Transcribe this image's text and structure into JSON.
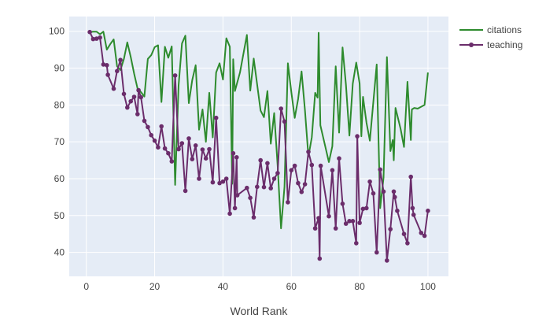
{
  "chart_data": {
    "type": "line",
    "xlabel": "World Rank",
    "ylabel": "",
    "xlim": [
      -5,
      106
    ],
    "ylim": [
      33.5,
      104
    ],
    "x_ticks": [
      0,
      20,
      40,
      60,
      80,
      100
    ],
    "y_ticks": [
      40,
      50,
      60,
      70,
      80,
      90,
      100
    ],
    "grid": true,
    "legend_position": "top-right",
    "series": [
      {
        "name": "citations",
        "color": "#2e8b2e",
        "markers": false,
        "points": [
          [
            1,
            99.8
          ],
          [
            2,
            99.9
          ],
          [
            3,
            99.9
          ],
          [
            4,
            99.2
          ],
          [
            5,
            99.9
          ],
          [
            6,
            95.0
          ],
          [
            7,
            96.5
          ],
          [
            8,
            97.8
          ],
          [
            9,
            90.5
          ],
          [
            10,
            89.5
          ],
          [
            11,
            92.5
          ],
          [
            12,
            97.0
          ],
          [
            13,
            93.0
          ],
          [
            14,
            88.5
          ],
          [
            15,
            84.5
          ],
          [
            16,
            83.5
          ],
          [
            17,
            82.3
          ],
          [
            18,
            92.5
          ],
          [
            19,
            93.5
          ],
          [
            20,
            95.7
          ],
          [
            21,
            96.2
          ],
          [
            22,
            80.8
          ],
          [
            23,
            95.8
          ],
          [
            24,
            92.8
          ],
          [
            25,
            95.9
          ],
          [
            26,
            58.3
          ],
          [
            27,
            85.3
          ],
          [
            28,
            96.7
          ],
          [
            29,
            98.8
          ],
          [
            30,
            80.5
          ],
          [
            31,
            86.7
          ],
          [
            32,
            90.8
          ],
          [
            33,
            73.3
          ],
          [
            34,
            78.8
          ],
          [
            35,
            70.0
          ],
          [
            36,
            83.3
          ],
          [
            37,
            71.2
          ],
          [
            38,
            88.8
          ],
          [
            39,
            91.3
          ],
          [
            40,
            86.9
          ],
          [
            41,
            98.1
          ],
          [
            42,
            95.8
          ],
          [
            42.7,
            58.6
          ],
          [
            43,
            92.4
          ],
          [
            43.5,
            83.8
          ],
          [
            45,
            88.9
          ],
          [
            47,
            99.0
          ],
          [
            48,
            83.9
          ],
          [
            49,
            92.6
          ],
          [
            51,
            78.5
          ],
          [
            52,
            76.7
          ],
          [
            53,
            83.8
          ],
          [
            54,
            69.5
          ],
          [
            55,
            77.8
          ],
          [
            56,
            63.5
          ],
          [
            57,
            46.5
          ],
          [
            58,
            57.8
          ],
          [
            59,
            91.3
          ],
          [
            60,
            83.5
          ],
          [
            61,
            76.5
          ],
          [
            62,
            81.6
          ],
          [
            63,
            89.1
          ],
          [
            64,
            78.6
          ],
          [
            65,
            66.0
          ],
          [
            66,
            71.2
          ],
          [
            67,
            83.3
          ],
          [
            67.7,
            82.0
          ],
          [
            68,
            99.6
          ],
          [
            68.5,
            74.5
          ],
          [
            70,
            68.5
          ],
          [
            71,
            64.5
          ],
          [
            72,
            68.8
          ],
          [
            73,
            90.5
          ],
          [
            74,
            72.5
          ],
          [
            75,
            95.6
          ],
          [
            76,
            85.5
          ],
          [
            77,
            71.7
          ],
          [
            78,
            85.8
          ],
          [
            79,
            91.5
          ],
          [
            80,
            85.8
          ],
          [
            80.5,
            71.5
          ],
          [
            81,
            82.2
          ],
          [
            82,
            75.2
          ],
          [
            83,
            70.3
          ],
          [
            85,
            91.0
          ],
          [
            86,
            52.0
          ],
          [
            87,
            60.3
          ],
          [
            88,
            93.0
          ],
          [
            89,
            67.5
          ],
          [
            89.7,
            70.5
          ],
          [
            90,
            65.0
          ],
          [
            90.5,
            79.2
          ],
          [
            92,
            73.5
          ],
          [
            93,
            68.6
          ],
          [
            94,
            86.3
          ],
          [
            95,
            70.5
          ],
          [
            95.3,
            78.8
          ],
          [
            96,
            79.2
          ],
          [
            97,
            79.0
          ],
          [
            99,
            80.0
          ],
          [
            100,
            88.8
          ]
        ]
      },
      {
        "name": "teaching",
        "color": "#6b2d6b",
        "markers": true,
        "points": [
          [
            1,
            99.8
          ],
          [
            2,
            97.9
          ],
          [
            3,
            98.0
          ],
          [
            4,
            98.3
          ],
          [
            5,
            91.0
          ],
          [
            6,
            90.8
          ],
          [
            6.3,
            88.2
          ],
          [
            8,
            84.4
          ],
          [
            9,
            89.2
          ],
          [
            10,
            92.2
          ],
          [
            11,
            83.0
          ],
          [
            12,
            79.3
          ],
          [
            13,
            81.0
          ],
          [
            14,
            82.2
          ],
          [
            15,
            77.5
          ],
          [
            15.3,
            84.0
          ],
          [
            16,
            82.1
          ],
          [
            17,
            75.7
          ],
          [
            18,
            74.0
          ],
          [
            19,
            71.8
          ],
          [
            20,
            70.3
          ],
          [
            21,
            68.5
          ],
          [
            22,
            74.2
          ],
          [
            23,
            68.2
          ],
          [
            24,
            66.9
          ],
          [
            25,
            64.7
          ],
          [
            26,
            88.0
          ],
          [
            27,
            68.0
          ],
          [
            28,
            69.6
          ],
          [
            29,
            56.7
          ],
          [
            30,
            70.9
          ],
          [
            31,
            65.3
          ],
          [
            32,
            69.0
          ],
          [
            33,
            60.0
          ],
          [
            34,
            67.9
          ],
          [
            35,
            65.5
          ],
          [
            36,
            68.0
          ],
          [
            37,
            59.0
          ],
          [
            38,
            76.5
          ],
          [
            39,
            58.8
          ],
          [
            40,
            59.2
          ],
          [
            41,
            60.0
          ],
          [
            42,
            50.5
          ],
          [
            43,
            66.9
          ],
          [
            43.5,
            52.0
          ],
          [
            44,
            65.8
          ],
          [
            44.2,
            55.5
          ],
          [
            47,
            57.5
          ],
          [
            48,
            54.8
          ],
          [
            49,
            49.5
          ],
          [
            50,
            57.8
          ],
          [
            51,
            65.0
          ],
          [
            52,
            57.7
          ],
          [
            53,
            64.2
          ],
          [
            54,
            57.4
          ],
          [
            55,
            60.0
          ],
          [
            56,
            61.5
          ],
          [
            57,
            79.0
          ],
          [
            58,
            75.5
          ],
          [
            59,
            53.6
          ],
          [
            60,
            62.3
          ],
          [
            61,
            63.5
          ],
          [
            62,
            58.8
          ],
          [
            63,
            56.4
          ],
          [
            64,
            58.5
          ],
          [
            65,
            67.3
          ],
          [
            66,
            63.7
          ],
          [
            67,
            46.5
          ],
          [
            68,
            49.3
          ],
          [
            68.3,
            38.3
          ],
          [
            68.6,
            63.5
          ],
          [
            71,
            49.8
          ],
          [
            72,
            62.3
          ],
          [
            73,
            46.5
          ],
          [
            74,
            65.5
          ],
          [
            75,
            53.2
          ],
          [
            76,
            47.8
          ],
          [
            77,
            48.5
          ],
          [
            78,
            48.5
          ],
          [
            79,
            42.5
          ],
          [
            79.3,
            71.5
          ],
          [
            80,
            48.0
          ],
          [
            81,
            51.8
          ],
          [
            82,
            52.0
          ],
          [
            83,
            59.2
          ],
          [
            84,
            56.0
          ],
          [
            85,
            40.0
          ],
          [
            86,
            62.5
          ],
          [
            87,
            56.5
          ],
          [
            88,
            37.8
          ],
          [
            89,
            46.3
          ],
          [
            90,
            56.5
          ],
          [
            90.3,
            55.0
          ],
          [
            91,
            51.3
          ],
          [
            93,
            45.0
          ],
          [
            94,
            42.5
          ],
          [
            95,
            60.5
          ],
          [
            95.5,
            52.0
          ],
          [
            95.8,
            50.2
          ],
          [
            98,
            45.3
          ],
          [
            99,
            44.5
          ],
          [
            100,
            51.3
          ]
        ]
      }
    ]
  }
}
